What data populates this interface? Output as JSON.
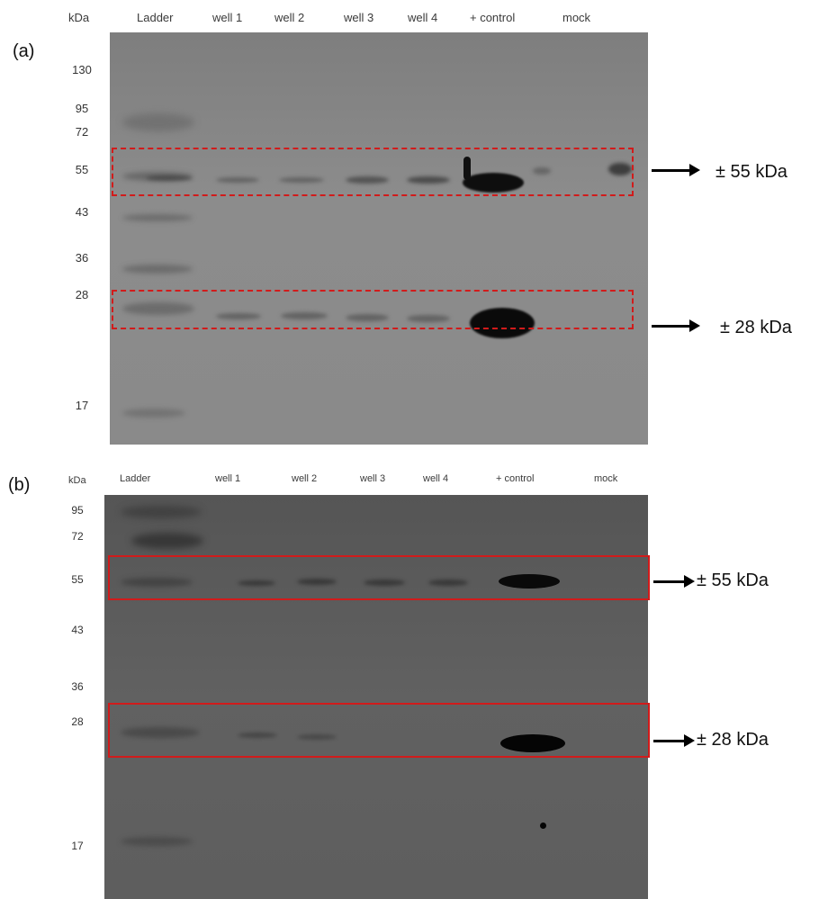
{
  "panel_a": {
    "letter": "(a)",
    "header": [
      "kDa",
      "Ladder",
      "well 1",
      "well 2",
      "well 3",
      "well 4",
      "+ control",
      "mock"
    ],
    "markers": [
      "130",
      "95",
      "72",
      "55",
      "43",
      "36",
      "28",
      "17"
    ],
    "annotations": [
      "± 55 kDa",
      "± 28 kDa"
    ]
  },
  "panel_b": {
    "letter": "(b)",
    "header": [
      "kDa",
      "Ladder",
      "well 1",
      "well 2",
      "well 3",
      "well 4",
      "+ control",
      "mock"
    ],
    "markers": [
      "95",
      "72",
      "55",
      "43",
      "36",
      "28",
      "17"
    ],
    "annotations": [
      "± 55 kDa",
      "± 28 kDa"
    ]
  },
  "colors": {
    "blot_a": "#8a8a8a",
    "blot_b": "#5e5e5e",
    "box": "#d11b1b",
    "band": "#111111"
  }
}
